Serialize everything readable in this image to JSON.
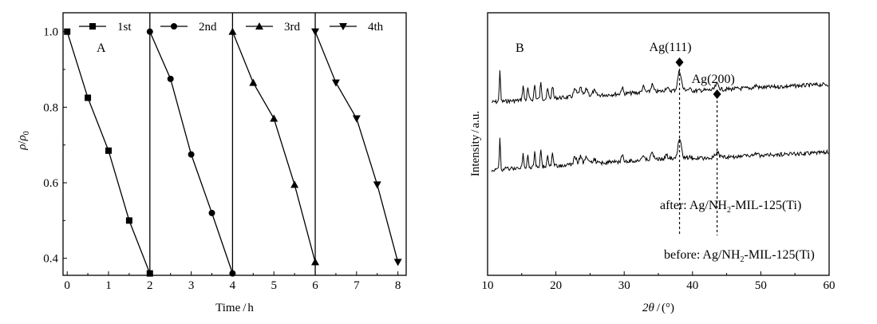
{
  "chart_data": [
    {
      "type": "line",
      "panel_label": "A",
      "xlabel": {
        "main": "Time",
        "unit": "h"
      },
      "ylabel": {
        "main": "ρ",
        "sub_num": "",
        "den": "ρ",
        "den_sub": "0"
      },
      "xlim": [
        -0.1,
        8.2
      ],
      "ylim": [
        0.355,
        1.05
      ],
      "xticks": [
        "0",
        "1",
        "2",
        "3",
        "4",
        "5",
        "6",
        "7",
        "8"
      ],
      "yticks": [
        "0.4",
        "0.6",
        "0.8",
        "1.0"
      ],
      "cycle_boundaries": [
        2,
        4,
        6
      ],
      "series": [
        {
          "name": "1st",
          "marker": "square",
          "x": [
            0,
            0.5,
            1,
            1.5,
            2
          ],
          "y": [
            1.0,
            0.825,
            0.685,
            0.5,
            0.36
          ]
        },
        {
          "name": "2nd",
          "marker": "circle",
          "x": [
            2,
            2.5,
            3,
            3.5,
            4
          ],
          "y": [
            1.0,
            0.875,
            0.675,
            0.52,
            0.36
          ]
        },
        {
          "name": "3rd",
          "marker": "triangle-up",
          "x": [
            4,
            4.5,
            5,
            5.5,
            6
          ],
          "y": [
            1.0,
            0.865,
            0.77,
            0.595,
            0.39
          ]
        },
        {
          "name": "4th",
          "marker": "triangle-down",
          "x": [
            6,
            6.5,
            7,
            7.5,
            8
          ],
          "y": [
            1.0,
            0.865,
            0.77,
            0.595,
            0.39
          ]
        }
      ]
    },
    {
      "type": "line",
      "panel_label": "B",
      "xlabel": {
        "main": "2θ",
        "unit": "(°)"
      },
      "ylabel": {
        "main": "Intensity",
        "unit": "a.u."
      },
      "xlim": [
        10,
        60
      ],
      "xticks": [
        "10",
        "20",
        "30",
        "40",
        "50",
        "60"
      ],
      "series": [
        {
          "name": "after: Ag/NH2-MIL-125(Ti)",
          "offset": "upper"
        },
        {
          "name": "before: Ag/NH2-MIL-125(Ti)",
          "offset": "lower"
        }
      ],
      "peaks": [
        {
          "label": "Ag(111)",
          "x": 38.1
        },
        {
          "label": "Ag(200)",
          "x": 43.6
        }
      ],
      "annotations": {
        "after_prefix": "after: Ag/NH",
        "after_sub": "2",
        "after_suffix": "-MIL-125(Ti)",
        "before_prefix": "before: Ag/NH",
        "before_sub": "2",
        "before_suffix": "-MIL-125(Ti)"
      }
    }
  ]
}
